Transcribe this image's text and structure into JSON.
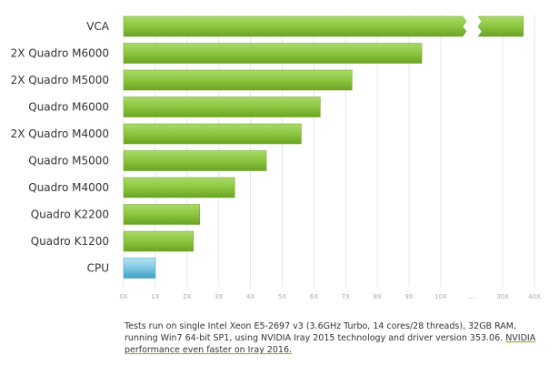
{
  "chart_data": {
    "type": "bar",
    "orientation": "horizontal",
    "categories": [
      "VCA",
      "2X Quadro M6000",
      "2X Quadro M5000",
      "Quadro M6000",
      "2X Quadro M4000",
      "Quadro M5000",
      "Quadro M4000",
      "Quadro K2200",
      "Quadro K1200",
      "CPU"
    ],
    "values": [
      36.5,
      9.4,
      7.2,
      6.2,
      5.6,
      4.5,
      3.5,
      2.4,
      2.2,
      1.0
    ],
    "highlight_category": "CPU",
    "x_ticks": [
      "0X",
      "1X",
      "2X",
      "3X",
      "4X",
      "5X",
      "6X",
      "7X",
      "8X",
      "9X",
      "10X",
      "....",
      "30X",
      "40X"
    ],
    "axis_break": {
      "after": 10,
      "resumes_at": 30,
      "marker": "...."
    },
    "xlim": [
      0,
      40
    ],
    "grid": true,
    "title": "",
    "xlabel": "",
    "ylabel": "",
    "colors": {
      "bar": "#8cc63f",
      "bar_light": "#a9d96a",
      "bar_dark": "#6aa323",
      "cpu_bar": "#7fc8e3",
      "cpu_bar_dark": "#3e9ec4",
      "grid": "#e6e6e6",
      "tick": "#a8a8a8",
      "link_underline": "#76b900"
    }
  },
  "footnote": {
    "text": "Tests run on single Intel Xeon E5-2697 v3 (3.6GHz Turbo, 14 cores/28 threads), 32GB RAM, running Win7 64-bit SP1, using NVIDIA Iray 2015 technology and driver version 353.06.",
    "link_text": "NVIDIA performance even faster on Iray 2016."
  }
}
